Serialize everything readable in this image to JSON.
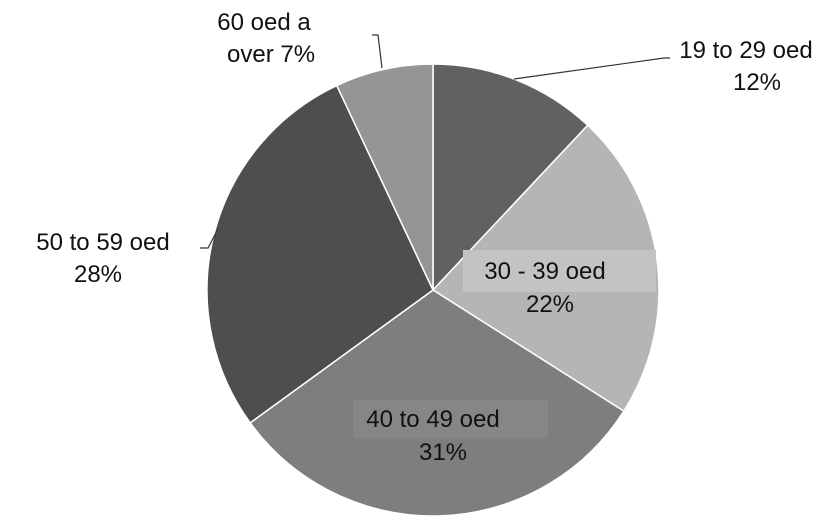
{
  "chart_data": {
    "type": "pie",
    "title": "",
    "slices": [
      {
        "label": "19 to 29 oed",
        "value": 12,
        "value_label": "12%",
        "color": "#616161"
      },
      {
        "label": "30 - 39 oed",
        "value": 22,
        "value_label": "22%",
        "color": "#b5b5b5"
      },
      {
        "label": "40 to 49 oed",
        "value": 31,
        "value_label": "31%",
        "color": "#7e7e7e"
      },
      {
        "label": "50 to 59 oed",
        "value": 28,
        "value_label": "28%",
        "color": "#4e4e4e"
      },
      {
        "label": "60 oed a",
        "label_line2": "over",
        "value": 7,
        "value_label": "7%",
        "color": "#959595"
      }
    ],
    "start_angle": "12 o'clock",
    "direction": "clockwise",
    "legend": "none"
  }
}
